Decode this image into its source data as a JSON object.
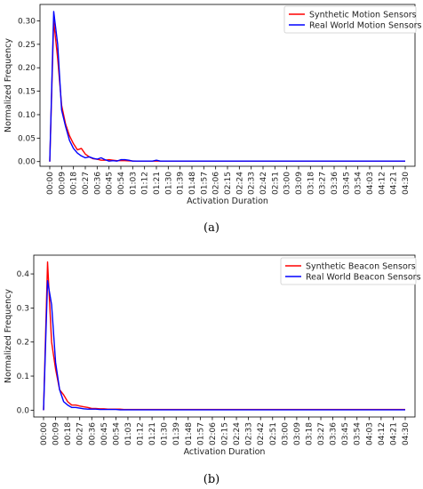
{
  "chart_data": [
    {
      "type": "line",
      "caption": "(a)",
      "xlabel": "Activation Duration",
      "ylabel": "Normalized Frequency",
      "ylim": [
        -0.01,
        0.335
      ],
      "yticks": [
        "0.00",
        "0.05",
        "0.10",
        "0.15",
        "0.20",
        "0.25",
        "0.30"
      ],
      "x_tick_labels": [
        "00:00",
        "00:09",
        "00:18",
        "00:27",
        "00:36",
        "00:45",
        "00:54",
        "01:03",
        "01:12",
        "01:21",
        "01:30",
        "01:39",
        "01:48",
        "01:57",
        "02:06",
        "02:15",
        "02:24",
        "02:33",
        "02:42",
        "02:51",
        "03:00",
        "03:09",
        "03:18",
        "03:27",
        "03:36",
        "03:45",
        "03:54",
        "04:03",
        "04:12",
        "04:21",
        "04:30"
      ],
      "x_minutes_start": 0,
      "x_minutes_step": 3,
      "legend_position": "top-right",
      "series": [
        {
          "name": "Synthetic Motion Sensors",
          "color": "#ff0000",
          "values": [
            0.0,
            0.3,
            0.22,
            0.12,
            0.08,
            0.055,
            0.038,
            0.025,
            0.028,
            0.016,
            0.01,
            0.006,
            0.005,
            0.003,
            0.003,
            0.004,
            0.003,
            0.002,
            0.002,
            0.002,
            0.0015,
            0.0012,
            0.001,
            0.001,
            0.001,
            0.001,
            0.001,
            0.001,
            0.001,
            0.001,
            0.001,
            0.001,
            0.001,
            0.001,
            0.001,
            0.001,
            0.001,
            0.001,
            0.001,
            0.001,
            0.001,
            0.001,
            0.001,
            0.001,
            0.001,
            0.001,
            0.001,
            0.001,
            0.001,
            0.001,
            0.001,
            0.001,
            0.001,
            0.001,
            0.001,
            0.001,
            0.001,
            0.001,
            0.001,
            0.001,
            0.001,
            0.001,
            0.001,
            0.001,
            0.001,
            0.001,
            0.001,
            0.001,
            0.001,
            0.001,
            0.001,
            0.001,
            0.001,
            0.001,
            0.001,
            0.001,
            0.001,
            0.001,
            0.001,
            0.001,
            0.001,
            0.001,
            0.001,
            0.001,
            0.001,
            0.001,
            0.001,
            0.001,
            0.001,
            0.001,
            0.001
          ]
        },
        {
          "name": "Real World Motion Sensors",
          "color": "#0000ff",
          "values": [
            0.0,
            0.32,
            0.25,
            0.11,
            0.075,
            0.045,
            0.028,
            0.018,
            0.012,
            0.008,
            0.01,
            0.007,
            0.005,
            0.008,
            0.004,
            0.001,
            0.002,
            0.001,
            0.004,
            0.004,
            0.003,
            0.001,
            0.001,
            0.001,
            0.001,
            0.001,
            0.001,
            0.003,
            0.001,
            0.001,
            0.001,
            0.001,
            0.001,
            0.001,
            0.001,
            0.001,
            0.001,
            0.001,
            0.001,
            0.001,
            0.001,
            0.001,
            0.001,
            0.001,
            0.001,
            0.001,
            0.001,
            0.001,
            0.001,
            0.001,
            0.001,
            0.001,
            0.001,
            0.001,
            0.001,
            0.001,
            0.001,
            0.001,
            0.001,
            0.001,
            0.001,
            0.001,
            0.001,
            0.001,
            0.001,
            0.001,
            0.001,
            0.001,
            0.001,
            0.001,
            0.001,
            0.001,
            0.001,
            0.001,
            0.001,
            0.001,
            0.001,
            0.001,
            0.001,
            0.001,
            0.001,
            0.001,
            0.001,
            0.001,
            0.001,
            0.001,
            0.001,
            0.001,
            0.001,
            0.001,
            0.001
          ]
        }
      ]
    },
    {
      "type": "line",
      "caption": "(b)",
      "xlabel": "Activation Duration",
      "ylabel": "Normalized Frequency",
      "ylim": [
        -0.02,
        0.455
      ],
      "yticks": [
        "0.0",
        "0.1",
        "0.2",
        "0.3",
        "0.4"
      ],
      "x_tick_labels": [
        "00:00",
        "00:09",
        "00:18",
        "00:27",
        "00:36",
        "00:45",
        "00:54",
        "01:03",
        "01:12",
        "01:21",
        "01:30",
        "01:39",
        "01:48",
        "01:57",
        "02:06",
        "02:15",
        "02:24",
        "02:33",
        "02:42",
        "02:51",
        "03:00",
        "03:09",
        "03:18",
        "03:27",
        "03:36",
        "03:45",
        "03:54",
        "04:03",
        "04:12",
        "04:21",
        "04:30"
      ],
      "x_minutes_start": 0,
      "x_minutes_step": 3,
      "legend_position": "top-right",
      "series": [
        {
          "name": "Synthetic Beacon Sensors",
          "color": "#ff0000",
          "values": [
            0.0,
            0.435,
            0.2,
            0.12,
            0.06,
            0.045,
            0.025,
            0.015,
            0.015,
            0.012,
            0.01,
            0.008,
            0.005,
            0.005,
            0.004,
            0.004,
            0.003,
            0.003,
            0.003,
            0.003,
            0.002,
            0.002,
            0.002,
            0.002,
            0.002,
            0.002,
            0.002,
            0.002,
            0.002,
            0.002,
            0.002,
            0.002,
            0.002,
            0.002,
            0.002,
            0.002,
            0.002,
            0.002,
            0.002,
            0.002,
            0.002,
            0.002,
            0.002,
            0.002,
            0.002,
            0.002,
            0.002,
            0.002,
            0.002,
            0.002,
            0.002,
            0.002,
            0.002,
            0.002,
            0.002,
            0.002,
            0.002,
            0.002,
            0.002,
            0.002,
            0.002,
            0.002,
            0.002,
            0.002,
            0.002,
            0.002,
            0.002,
            0.002,
            0.002,
            0.002,
            0.002,
            0.002,
            0.002,
            0.002,
            0.002,
            0.002,
            0.002,
            0.002,
            0.002,
            0.002,
            0.002,
            0.002,
            0.002,
            0.002,
            0.002,
            0.002,
            0.002,
            0.002,
            0.002,
            0.002,
            0.002
          ]
        },
        {
          "name": "Real World Beacon Sensors",
          "color": "#0000ff",
          "values": [
            0.0,
            0.38,
            0.31,
            0.14,
            0.06,
            0.025,
            0.015,
            0.008,
            0.008,
            0.006,
            0.004,
            0.003,
            0.003,
            0.003,
            0.002,
            0.002,
            0.002,
            0.002,
            0.002,
            0.001,
            0.001,
            0.001,
            0.001,
            0.001,
            0.001,
            0.001,
            0.001,
            0.001,
            0.001,
            0.001,
            0.001,
            0.001,
            0.001,
            0.001,
            0.001,
            0.001,
            0.001,
            0.001,
            0.001,
            0.001,
            0.001,
            0.001,
            0.001,
            0.001,
            0.001,
            0.001,
            0.001,
            0.001,
            0.001,
            0.001,
            0.001,
            0.001,
            0.001,
            0.001,
            0.001,
            0.001,
            0.001,
            0.001,
            0.001,
            0.001,
            0.001,
            0.001,
            0.001,
            0.001,
            0.001,
            0.001,
            0.001,
            0.001,
            0.001,
            0.001,
            0.001,
            0.001,
            0.001,
            0.001,
            0.001,
            0.001,
            0.001,
            0.001,
            0.001,
            0.001,
            0.001,
            0.001,
            0.001,
            0.001,
            0.001,
            0.001,
            0.001,
            0.001,
            0.001,
            0.001,
            0.001
          ]
        }
      ]
    }
  ]
}
